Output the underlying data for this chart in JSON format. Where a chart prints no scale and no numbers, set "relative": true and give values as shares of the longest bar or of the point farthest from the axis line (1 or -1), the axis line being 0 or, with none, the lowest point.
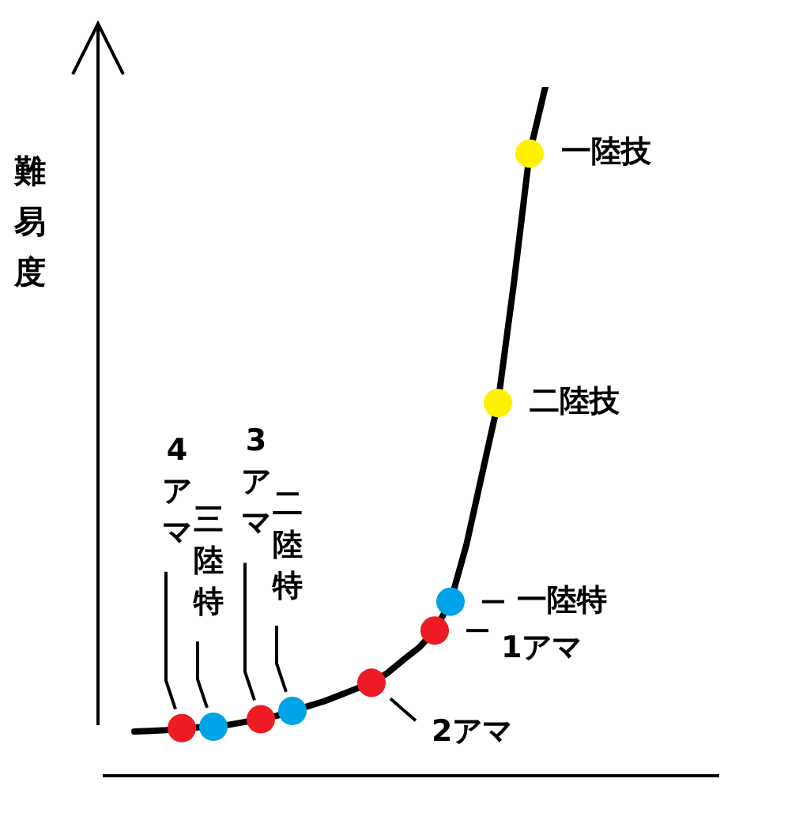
{
  "chart_data": {
    "type": "line",
    "relative": true,
    "ylabel": "難易度",
    "categories": [
      null,
      null,
      null,
      null,
      null,
      null,
      null,
      null,
      null,
      null,
      null,
      null,
      null,
      null,
      null,
      null,
      null,
      null,
      null,
      null,
      null,
      null,
      null,
      null,
      null,
      null,
      null
    ],
    "series": [
      {
        "color": "#000000",
        "values": [
          0.062,
          0.063,
          0.064,
          0.067,
          0.068,
          0.069,
          0.072,
          0.076,
          0.08,
          0.085,
          0.092,
          0.099,
          0.106,
          0.115,
          0.124,
          0.133,
          0.147,
          0.166,
          0.184,
          0.209,
          0.251,
          0.333,
          0.437,
          0.54,
          0.713,
          0.903,
          1
        ],
        "colors": [
          null,
          null,
          null,
          "#ed1c24",
          null,
          "#00a2e8",
          null,
          null,
          "#ed1c24",
          null,
          "#00a2e8",
          null,
          null,
          null,
          null,
          "#ed1c24",
          null,
          null,
          null,
          "#ed1c24",
          "#00a2e8",
          null,
          null,
          "#fff200",
          null,
          "#fff200",
          null
        ]
      }
    ],
    "annotations": [
      "4アマ",
      "三陸特",
      "3アマ",
      "二陸特",
      "2アマ",
      "1アマ",
      "一陸特",
      "二陸技",
      "一陸技"
    ]
  }
}
